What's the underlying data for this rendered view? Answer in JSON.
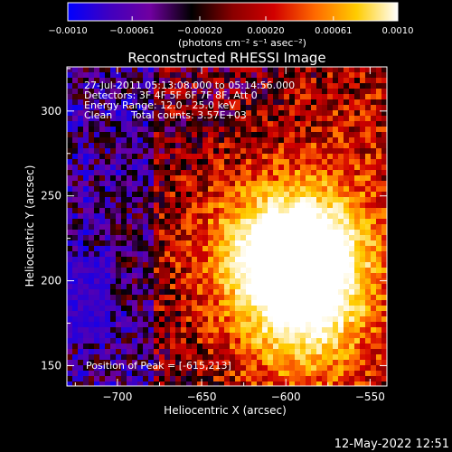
{
  "chart_data": {
    "type": "heatmap",
    "title": "Reconstructed RHESSI Image",
    "xlabel": "Heliocentric X (arcsec)",
    "ylabel": "Heliocentric Y (arcsec)",
    "xlim": [
      -730,
      -540
    ],
    "ylim": [
      138,
      326
    ],
    "xticks": [
      -700,
      -650,
      -600,
      -550
    ],
    "yticks": [
      150,
      200,
      250,
      300
    ],
    "colorbar": {
      "min": -0.001,
      "max": 0.001,
      "tick_values": [
        -0.001,
        -0.00061,
        -0.0002,
        0.0002,
        0.00061,
        0.001
      ],
      "tick_labels": [
        "−0.0010",
        "−0.00061",
        "−0.00020",
        "0.00020",
        "0.00061",
        "0.0010"
      ],
      "unit_label": "(photons cm⁻² s⁻¹ asec⁻²)",
      "colormap": [
        "#0000ff",
        "#4000c0",
        "#7000a0",
        "#000000",
        "#8a0000",
        "#d20000",
        "#ff6a00",
        "#ffcc00",
        "#ffffff"
      ]
    },
    "source_peak": {
      "x": -615,
      "y": 213
    },
    "annotations": [
      "27-Jul-2011 05:13:08.000 to 05:14:56.000",
      "Detectors: 3F 4F 5F 6F 7F 8F, Att 0",
      "Energy Range: 12.0 - 25.0 keV",
      "Clean",
      "Total counts: 3.57E+03",
      "Position of Peak = [-615,213]"
    ]
  },
  "footer_timestamp": "12-May-2022 12:51"
}
